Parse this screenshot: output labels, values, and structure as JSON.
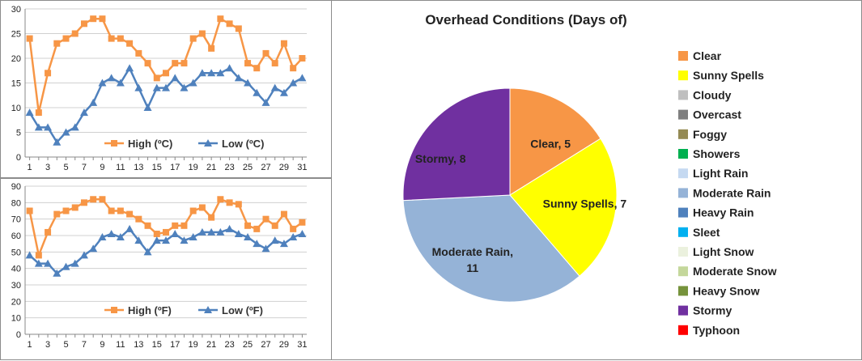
{
  "chart_data": [
    {
      "type": "line",
      "x": [
        1,
        2,
        3,
        4,
        5,
        6,
        7,
        8,
        9,
        10,
        11,
        12,
        13,
        14,
        15,
        16,
        17,
        18,
        19,
        20,
        21,
        22,
        23,
        24,
        25,
        26,
        27,
        28,
        29,
        30,
        31
      ],
      "ylim": [
        0,
        30
      ],
      "yticks": [
        0,
        5,
        10,
        15,
        20,
        25,
        30
      ],
      "grid": true,
      "legend": "bottom",
      "series": [
        {
          "name": "High (ºC)",
          "color": "#f79646",
          "marker": "square",
          "values": [
            24,
            9,
            17,
            23,
            24,
            25,
            27,
            28,
            28,
            24,
            24,
            23,
            21,
            19,
            16,
            17,
            19,
            19,
            24,
            25,
            22,
            28,
            27,
            26,
            19,
            18,
            21,
            19,
            23,
            18,
            20
          ]
        },
        {
          "name": "Low (ºC)",
          "color": "#4f81bd",
          "marker": "triangle",
          "values": [
            9,
            6,
            6,
            3,
            5,
            6,
            9,
            11,
            15,
            16,
            15,
            18,
            14,
            10,
            14,
            14,
            16,
            14,
            15,
            17,
            17,
            17,
            18,
            16,
            15,
            13,
            11,
            14,
            13,
            15,
            16
          ]
        }
      ]
    },
    {
      "type": "line",
      "x": [
        1,
        2,
        3,
        4,
        5,
        6,
        7,
        8,
        9,
        10,
        11,
        12,
        13,
        14,
        15,
        16,
        17,
        18,
        19,
        20,
        21,
        22,
        23,
        24,
        25,
        26,
        27,
        28,
        29,
        30,
        31
      ],
      "ylim": [
        0,
        90
      ],
      "yticks": [
        0,
        10,
        20,
        30,
        40,
        50,
        60,
        70,
        80,
        90
      ],
      "grid": true,
      "legend": "bottom",
      "series": [
        {
          "name": "High (ºF)",
          "color": "#f79646",
          "marker": "square",
          "values": [
            75,
            48,
            62,
            73,
            75,
            77,
            80,
            82,
            82,
            75,
            75,
            73,
            70,
            66,
            61,
            62,
            66,
            66,
            75,
            77,
            71,
            82,
            80,
            79,
            66,
            64,
            70,
            66,
            73,
            64,
            68
          ]
        },
        {
          "name": "Low (ºF)",
          "color": "#4f81bd",
          "marker": "triangle",
          "values": [
            48,
            43,
            43,
            37,
            41,
            43,
            48,
            52,
            59,
            61,
            59,
            64,
            57,
            50,
            57,
            57,
            61,
            57,
            59,
            62,
            62,
            62,
            64,
            61,
            59,
            55,
            52,
            57,
            55,
            59,
            61
          ]
        }
      ]
    },
    {
      "type": "pie",
      "title": "Overhead Conditions (Days of)",
      "legend": "right",
      "slices": [
        {
          "label": "Clear",
          "value": 5,
          "color": "#f79646"
        },
        {
          "label": "Sunny Spells",
          "value": 7,
          "color": "#ffff00"
        },
        {
          "label": "Moderate Rain",
          "value": 11,
          "color": "#95b3d7"
        },
        {
          "label": "Stormy",
          "value": 8,
          "color": "#7030a0"
        }
      ],
      "legend_items": [
        {
          "label": "Clear",
          "color": "#f79646"
        },
        {
          "label": "Sunny Spells",
          "color": "#ffff00"
        },
        {
          "label": "Cloudy",
          "color": "#bfbfbf"
        },
        {
          "label": "Overcast",
          "color": "#7f7f7f"
        },
        {
          "label": "Foggy",
          "color": "#948a54"
        },
        {
          "label": "Showers",
          "color": "#00b050"
        },
        {
          "label": "Light Rain",
          "color": "#c5d9f1"
        },
        {
          "label": "Moderate Rain",
          "color": "#95b3d7"
        },
        {
          "label": "Heavy Rain",
          "color": "#4f81bd"
        },
        {
          "label": "Sleet",
          "color": "#00b0f0"
        },
        {
          "label": "Light Snow",
          "color": "#ebf1de"
        },
        {
          "label": "Moderate Snow",
          "color": "#c4d79b"
        },
        {
          "label": "Heavy Snow",
          "color": "#76933c"
        },
        {
          "label": "Stormy",
          "color": "#7030a0"
        },
        {
          "label": "Typhoon",
          "color": "#ff0000"
        }
      ]
    }
  ]
}
